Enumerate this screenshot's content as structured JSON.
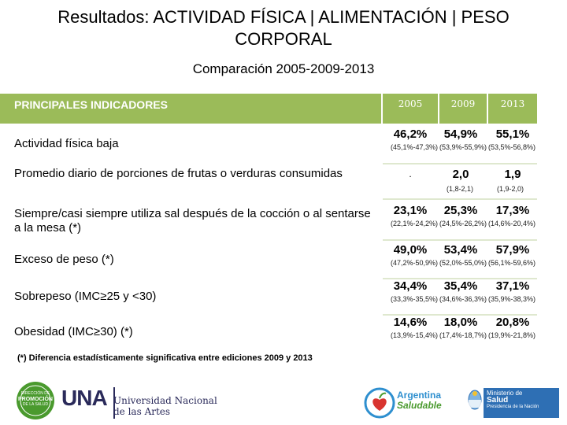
{
  "title": "Resultados: ACTIVIDAD FÍSICA | ALIMENTACIÓN | PESO CORPORAL",
  "subtitle": "Comparación 2005-2009-2013",
  "table": {
    "header_label": "PRINCIPALES INDICADORES",
    "years": [
      "2005",
      "2009",
      "2013"
    ],
    "rows": [
      {
        "label": "Actividad física baja",
        "values": [
          "46,2%",
          "54,9%",
          "55,1%"
        ],
        "ci": [
          "(45,1%-47,3%)",
          "(53,9%-55,9%)",
          "(53,5%-56,8%)"
        ]
      },
      {
        "label": "Promedio diario de porciones de frutas o verduras consumidas",
        "values": [
          ".",
          "2,0",
          "1,9"
        ],
        "ci": [
          "",
          "(1,8-2,1)",
          "(1,9-2,0)"
        ]
      },
      {
        "label": "Siempre/casi siempre utiliza sal después de la cocción o al sentarse a la mesa (*)",
        "values": [
          "23,1%",
          "25,3%",
          "17,3%"
        ],
        "ci": [
          "(22,1%-24,2%)",
          "(24,5%-26,2%)",
          "(14,6%-20,4%)"
        ]
      },
      {
        "label": "Exceso de peso (*)",
        "values": [
          "49,0%",
          "53,4%",
          "57,9%"
        ],
        "ci": [
          "(47,2%-50,9%)",
          "(52,0%-55,0%)",
          "(56,1%-59,6%)"
        ]
      },
      {
        "label": "Sobrepeso (IMC≥25 y <30)",
        "values": [
          "34,4%",
          "35,4%",
          "37,1%"
        ],
        "ci": [
          "(33,3%-35,5%)",
          "(34,6%-36,3%)",
          "(35,9%-38,3%)"
        ]
      },
      {
        "label": "Obesidad (IMC≥30) (*)",
        "values": [
          "14,6%",
          "18,0%",
          "20,8%"
        ],
        "ci": [
          "(13,9%-15,4%)",
          "(17,4%-18,7%)",
          "(19,9%-21,8%)"
        ]
      }
    ]
  },
  "footnote": "(*) Diferencia estadísticamente significativa entre ediciones 2009 y 2013",
  "logos": {
    "promo": {
      "line1": "DIRECCIÓN DE",
      "line2": "PROMOCIÓN",
      "line3": "DE LA SALUD"
    },
    "una": {
      "mark": "UNA",
      "line1": "Universidad Nacional",
      "line2": "de las Artes"
    },
    "argentina_saludable": {
      "line1": "Argentina",
      "line2": "Saludable"
    },
    "ministerio": {
      "line1": "Ministerio de",
      "line2": "Salud",
      "line3": "Presidencia de la Nación"
    }
  },
  "colors": {
    "header_green": "#9bbb59",
    "accent_green": "#4a9a2e",
    "ministry_blue": "#2e6fb4"
  }
}
